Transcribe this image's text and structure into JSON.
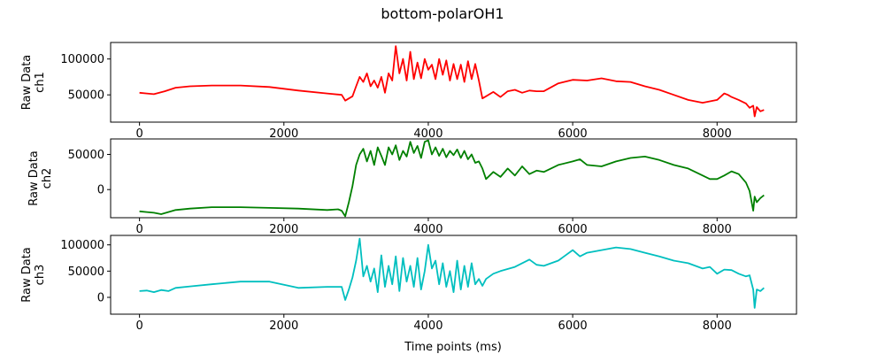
{
  "chart_data": {
    "type": "line",
    "title": "bottom-polarOH1",
    "xlabel": "Time points (ms)",
    "xlim": [
      -400,
      9100
    ],
    "xticks": [
      0,
      2000,
      4000,
      6000,
      8000
    ],
    "xtick_labels": [
      "0",
      "2000",
      "4000",
      "6000",
      "8000"
    ],
    "grid": false,
    "panels": [
      {
        "ylabel_lines": [
          "Raw Data",
          "ch1"
        ],
        "ylim": [
          12000,
          123000
        ],
        "yticks": [
          50000,
          100000
        ],
        "ytick_labels": [
          "50000",
          "100000"
        ],
        "color": "#ff0000",
        "x": [
          0,
          100,
          200,
          350,
          500,
          700,
          1000,
          1400,
          1800,
          2200,
          2600,
          2800,
          2850,
          2950,
          3000,
          3050,
          3100,
          3150,
          3200,
          3250,
          3300,
          3350,
          3400,
          3450,
          3500,
          3550,
          3600,
          3650,
          3700,
          3750,
          3800,
          3850,
          3900,
          3950,
          4000,
          4050,
          4100,
          4150,
          4200,
          4250,
          4300,
          4350,
          4400,
          4450,
          4500,
          4550,
          4600,
          4650,
          4700,
          4750,
          4800,
          4900,
          5000,
          5100,
          5200,
          5300,
          5400,
          5500,
          5600,
          5800,
          6000,
          6200,
          6400,
          6600,
          6800,
          7000,
          7200,
          7400,
          7600,
          7800,
          8000,
          8100,
          8150,
          8200,
          8300,
          8400,
          8450,
          8500,
          8520,
          8550,
          8600,
          8650
        ],
        "y": [
          53000,
          52000,
          51000,
          55000,
          60000,
          62000,
          63000,
          63000,
          61000,
          56000,
          52000,
          50000,
          42000,
          48000,
          62000,
          75000,
          68000,
          80000,
          62000,
          70000,
          60000,
          75000,
          53000,
          80000,
          70000,
          118000,
          80000,
          100000,
          70000,
          110000,
          72000,
          95000,
          73000,
          100000,
          85000,
          92000,
          72000,
          100000,
          78000,
          98000,
          70000,
          93000,
          72000,
          92000,
          68000,
          97000,
          72000,
          93000,
          70000,
          45000,
          48000,
          54000,
          47000,
          55000,
          57000,
          53000,
          56000,
          55000,
          55000,
          66000,
          71000,
          70000,
          73000,
          69000,
          68000,
          62000,
          57000,
          50000,
          43000,
          39000,
          43000,
          52000,
          50000,
          47000,
          43000,
          38000,
          32000,
          35000,
          20000,
          33000,
          27000,
          29000
        ]
      },
      {
        "ylabel_lines": [
          "Raw Data",
          "ch2"
        ],
        "ylim": [
          -40000,
          72000
        ],
        "yticks": [
          0,
          50000
        ],
        "ytick_labels": [
          "0",
          "50000"
        ],
        "color": "#008000",
        "x": [
          0,
          100,
          200,
          300,
          500,
          700,
          1000,
          1400,
          1800,
          2200,
          2600,
          2750,
          2800,
          2850,
          2900,
          2950,
          3000,
          3050,
          3100,
          3150,
          3200,
          3250,
          3300,
          3350,
          3400,
          3450,
          3500,
          3550,
          3600,
          3650,
          3700,
          3750,
          3800,
          3850,
          3900,
          3950,
          4000,
          4050,
          4100,
          4150,
          4200,
          4250,
          4300,
          4350,
          4400,
          4450,
          4500,
          4550,
          4600,
          4650,
          4700,
          4750,
          4800,
          4900,
          5000,
          5100,
          5200,
          5300,
          5400,
          5500,
          5600,
          5800,
          6000,
          6100,
          6200,
          6400,
          6600,
          6800,
          7000,
          7200,
          7400,
          7600,
          7800,
          7900,
          8000,
          8100,
          8200,
          8300,
          8400,
          8450,
          8500,
          8520,
          8550,
          8600,
          8650
        ],
        "y": [
          -31000,
          -32000,
          -33000,
          -35000,
          -29000,
          -27000,
          -25000,
          -25000,
          -26000,
          -27000,
          -29000,
          -28000,
          -30000,
          -38000,
          -18000,
          5000,
          35000,
          50000,
          58000,
          40000,
          55000,
          35000,
          60000,
          48000,
          35000,
          60000,
          50000,
          63000,
          42000,
          55000,
          47000,
          68000,
          52000,
          62000,
          45000,
          68000,
          70000,
          50000,
          60000,
          48000,
          58000,
          46000,
          55000,
          49000,
          57000,
          45000,
          55000,
          43000,
          50000,
          38000,
          40000,
          30000,
          15000,
          25000,
          18000,
          30000,
          20000,
          33000,
          22000,
          27000,
          25000,
          35000,
          40000,
          43000,
          35000,
          33000,
          40000,
          45000,
          47000,
          42000,
          35000,
          30000,
          20000,
          15000,
          15000,
          20000,
          26000,
          22000,
          10000,
          -2000,
          -30000,
          -10000,
          -18000,
          -12000,
          -8000
        ]
      },
      {
        "ylabel_lines": [
          "Raw Data",
          "ch3"
        ],
        "ylim": [
          -32000,
          118000
        ],
        "yticks": [
          0,
          50000,
          100000
        ],
        "ytick_labels": [
          "0",
          "50000",
          "100000"
        ],
        "color": "#00bfbf",
        "x": [
          0,
          100,
          200,
          300,
          400,
          500,
          700,
          1000,
          1400,
          1800,
          2200,
          2600,
          2800,
          2850,
          2900,
          2950,
          3000,
          3050,
          3100,
          3150,
          3200,
          3250,
          3300,
          3350,
          3400,
          3450,
          3500,
          3550,
          3600,
          3650,
          3700,
          3750,
          3800,
          3850,
          3900,
          3950,
          4000,
          4050,
          4100,
          4150,
          4200,
          4250,
          4300,
          4350,
          4400,
          4450,
          4500,
          4550,
          4600,
          4650,
          4700,
          4750,
          4800,
          4900,
          5000,
          5200,
          5400,
          5500,
          5600,
          5800,
          6000,
          6100,
          6200,
          6400,
          6600,
          6800,
          7000,
          7200,
          7400,
          7600,
          7800,
          7900,
          8000,
          8100,
          8200,
          8300,
          8400,
          8450,
          8500,
          8520,
          8550,
          8600,
          8650
        ],
        "y": [
          12000,
          13000,
          10000,
          14000,
          12000,
          18000,
          21000,
          25000,
          30000,
          30000,
          18000,
          20000,
          20000,
          -5000,
          15000,
          38000,
          70000,
          112000,
          40000,
          60000,
          30000,
          55000,
          10000,
          80000,
          20000,
          60000,
          25000,
          78000,
          12000,
          75000,
          30000,
          60000,
          20000,
          75000,
          15000,
          50000,
          100000,
          55000,
          70000,
          25000,
          65000,
          20000,
          50000,
          10000,
          70000,
          15000,
          60000,
          20000,
          65000,
          25000,
          35000,
          22000,
          35000,
          45000,
          50000,
          58000,
          72000,
          62000,
          60000,
          70000,
          90000,
          78000,
          85000,
          90000,
          95000,
          92000,
          85000,
          78000,
          70000,
          65000,
          55000,
          58000,
          45000,
          53000,
          52000,
          45000,
          40000,
          42000,
          15000,
          -20000,
          15000,
          12000,
          18000
        ]
      }
    ]
  }
}
